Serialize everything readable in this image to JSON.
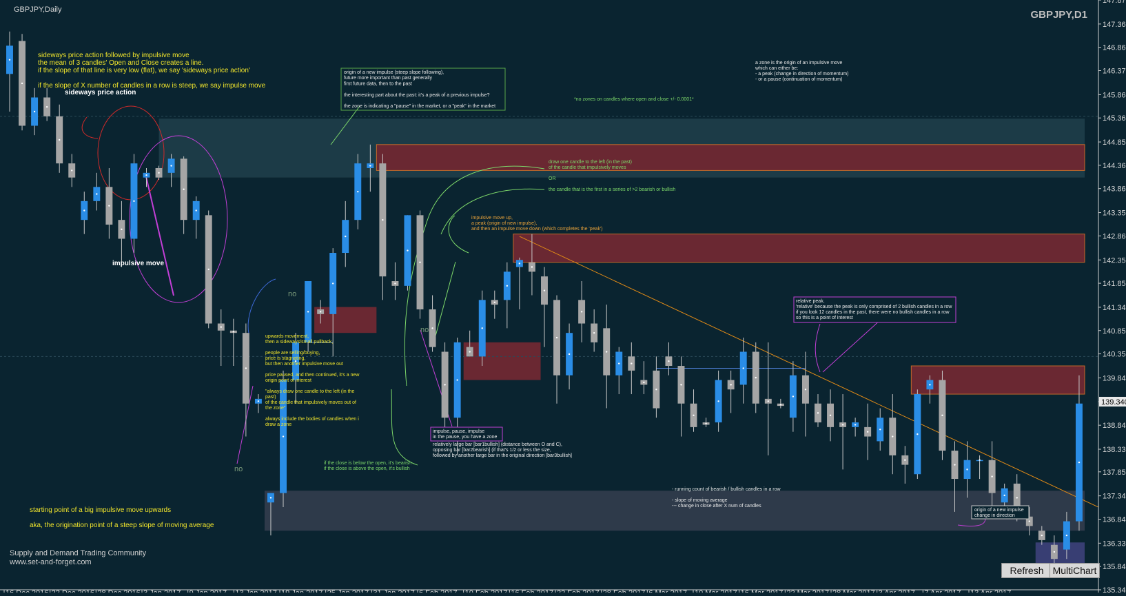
{
  "window": {
    "symbol_title": "GBPJPY,Daily",
    "watermark": "GBPJPY,D1",
    "current_price_badge": "139.340",
    "refresh_button": "Refresh",
    "multichart_button": "MultiChart"
  },
  "colors": {
    "background": "#0a2430",
    "bull_body": "#2a8de6",
    "bear_body": "#a5a5a5",
    "wick": "#c8c8c8",
    "supply_zone": "#6a2832",
    "demand_zone": "#2e3a4a",
    "trendline": "#e08a16",
    "annotation_yellow": "#f1e52c",
    "annotation_green": "#7dd86a",
    "annotation_orange": "#e8a23a",
    "annotation_white": "#e8e8e8",
    "magenta": "#c23fd6",
    "red_circle": "#d02a2a"
  },
  "chart_data": {
    "type": "candlestick",
    "symbol": "GBPJPY",
    "timeframe": "Daily",
    "ylim": [
      135.345,
      147.87
    ],
    "y_ticks": [
      "147.870",
      "147.360",
      "146.865",
      "146.370",
      "145.860",
      "145.365",
      "144.855",
      "144.360",
      "143.865",
      "143.355",
      "142.860",
      "142.350",
      "141.855",
      "141.345",
      "140.850",
      "140.355",
      "139.845",
      "139.340",
      "138.840",
      "138.330",
      "137.850",
      "137.340",
      "136.845",
      "136.335",
      "135.840",
      "135.345"
    ],
    "x_labels": [
      "16 Dec 2016",
      "22 Dec 2016",
      "28 Dec 2016",
      "3 Jan 2017",
      "9 Jan 2017",
      "13 Jan 2017",
      "19 Jan 2017",
      "25 Jan 2017",
      "31 Jan 2017",
      "6 Feb 2017",
      "10 Feb 2017",
      "16 Feb 2017",
      "22 Feb 2017",
      "28 Feb 2017",
      "6 Mar 2017",
      "10 Mar 2017",
      "16 Mar 2017",
      "22 Mar 2017",
      "28 Mar 2017",
      "3 Apr 2017",
      "7 Apr 2017",
      "13 Apr 2017"
    ],
    "candles": [
      {
        "o": 146.3,
        "h": 147.2,
        "l": 145.5,
        "c": 146.9
      },
      {
        "o": 147.0,
        "h": 147.15,
        "l": 145.1,
        "c": 145.2
      },
      {
        "o": 145.2,
        "h": 146.0,
        "l": 145.0,
        "c": 145.8
      },
      {
        "o": 145.8,
        "h": 146.0,
        "l": 145.3,
        "c": 145.4
      },
      {
        "o": 145.4,
        "h": 145.65,
        "l": 144.2,
        "c": 144.4
      },
      {
        "o": 144.4,
        "h": 144.6,
        "l": 143.9,
        "c": 144.1
      },
      {
        "o": 143.2,
        "h": 143.8,
        "l": 142.9,
        "c": 143.6
      },
      {
        "o": 143.6,
        "h": 144.2,
        "l": 143.4,
        "c": 143.9
      },
      {
        "o": 143.9,
        "h": 144.3,
        "l": 142.8,
        "c": 143.1
      },
      {
        "o": 143.2,
        "h": 143.6,
        "l": 142.2,
        "c": 142.8
      },
      {
        "o": 142.8,
        "h": 144.6,
        "l": 142.5,
        "c": 144.4
      },
      {
        "o": 144.1,
        "h": 144.3,
        "l": 143.9,
        "c": 144.2
      },
      {
        "o": 144.3,
        "h": 144.35,
        "l": 144.05,
        "c": 144.1
      },
      {
        "o": 144.2,
        "h": 144.6,
        "l": 143.9,
        "c": 144.5
      },
      {
        "o": 144.5,
        "h": 144.55,
        "l": 142.9,
        "c": 143.2
      },
      {
        "o": 143.2,
        "h": 143.7,
        "l": 142.8,
        "c": 143.6
      },
      {
        "o": 143.3,
        "h": 143.4,
        "l": 140.9,
        "c": 141.0
      },
      {
        "o": 141.0,
        "h": 141.3,
        "l": 140.1,
        "c": 140.85
      },
      {
        "o": 140.85,
        "h": 141.1,
        "l": 140.1,
        "c": 140.8
      },
      {
        "o": 140.8,
        "h": 141.0,
        "l": 138.6,
        "c": 139.3
      },
      {
        "o": 139.3,
        "h": 139.5,
        "l": 139.1,
        "c": 139.4
      },
      {
        "o": 137.2,
        "h": 137.3,
        "l": 136.5,
        "c": 137.4
      },
      {
        "o": 137.4,
        "h": 140.0,
        "l": 137.1,
        "c": 139.8
      },
      {
        "o": 139.8,
        "h": 140.8,
        "l": 139.3,
        "c": 140.6
      },
      {
        "o": 140.6,
        "h": 141.9,
        "l": 140.4,
        "c": 141.9
      },
      {
        "o": 141.3,
        "h": 141.5,
        "l": 141.0,
        "c": 141.2
      },
      {
        "o": 141.2,
        "h": 142.6,
        "l": 140.3,
        "c": 142.5
      },
      {
        "o": 142.5,
        "h": 143.6,
        "l": 142.2,
        "c": 143.2
      },
      {
        "o": 143.2,
        "h": 144.6,
        "l": 143.0,
        "c": 144.4
      },
      {
        "o": 144.3,
        "h": 144.8,
        "l": 143.8,
        "c": 144.4
      },
      {
        "o": 144.4,
        "h": 144.6,
        "l": 141.5,
        "c": 142.0
      },
      {
        "o": 141.9,
        "h": 142.3,
        "l": 141.5,
        "c": 141.8
      },
      {
        "o": 141.8,
        "h": 143.3,
        "l": 141.7,
        "c": 143.3
      },
      {
        "o": 143.3,
        "h": 143.4,
        "l": 141.1,
        "c": 141.3
      },
      {
        "o": 141.3,
        "h": 141.6,
        "l": 140.4,
        "c": 140.5
      },
      {
        "o": 140.4,
        "h": 140.6,
        "l": 138.5,
        "c": 139.0
      },
      {
        "o": 139.0,
        "h": 140.7,
        "l": 138.2,
        "c": 140.6
      },
      {
        "o": 140.5,
        "h": 140.85,
        "l": 140.3,
        "c": 140.3
      },
      {
        "o": 140.3,
        "h": 141.7,
        "l": 140.1,
        "c": 141.5
      },
      {
        "o": 141.5,
        "h": 141.7,
        "l": 141.1,
        "c": 141.4
      },
      {
        "o": 141.5,
        "h": 142.3,
        "l": 140.9,
        "c": 142.1
      },
      {
        "o": 142.2,
        "h": 142.4,
        "l": 141.3,
        "c": 142.35
      },
      {
        "o": 142.3,
        "h": 142.9,
        "l": 141.6,
        "c": 142.1
      },
      {
        "o": 142.0,
        "h": 142.2,
        "l": 140.5,
        "c": 141.4
      },
      {
        "o": 141.5,
        "h": 141.6,
        "l": 139.3,
        "c": 139.9
      },
      {
        "o": 139.9,
        "h": 141.0,
        "l": 139.6,
        "c": 140.8
      },
      {
        "o": 141.5,
        "h": 141.9,
        "l": 140.6,
        "c": 141.0
      },
      {
        "o": 141.0,
        "h": 141.3,
        "l": 140.4,
        "c": 140.6
      },
      {
        "o": 140.9,
        "h": 141.4,
        "l": 139.2,
        "c": 139.9
      },
      {
        "o": 139.9,
        "h": 140.5,
        "l": 139.5,
        "c": 140.4
      },
      {
        "o": 140.3,
        "h": 140.6,
        "l": 139.5,
        "c": 140.0
      },
      {
        "o": 139.8,
        "h": 140.2,
        "l": 139.5,
        "c": 139.7
      },
      {
        "o": 140.0,
        "h": 140.3,
        "l": 139.0,
        "c": 139.2
      },
      {
        "o": 140.3,
        "h": 140.6,
        "l": 139.9,
        "c": 140.1
      },
      {
        "o": 140.1,
        "h": 140.3,
        "l": 138.6,
        "c": 139.3
      },
      {
        "o": 139.3,
        "h": 139.6,
        "l": 138.7,
        "c": 138.8
      },
      {
        "o": 138.9,
        "h": 139.0,
        "l": 138.8,
        "c": 138.85
      },
      {
        "o": 138.9,
        "h": 140.0,
        "l": 138.7,
        "c": 139.8
      },
      {
        "o": 139.8,
        "h": 140.0,
        "l": 139.1,
        "c": 139.6
      },
      {
        "o": 139.7,
        "h": 140.7,
        "l": 139.3,
        "c": 140.4
      },
      {
        "o": 140.4,
        "h": 140.6,
        "l": 139.1,
        "c": 139.3
      },
      {
        "o": 139.4,
        "h": 140.6,
        "l": 138.2,
        "c": 139.3
      },
      {
        "o": 139.3,
        "h": 139.4,
        "l": 139.2,
        "c": 139.25
      },
      {
        "o": 139.0,
        "h": 140.2,
        "l": 138.7,
        "c": 139.9
      },
      {
        "o": 139.9,
        "h": 140.4,
        "l": 138.6,
        "c": 139.3
      },
      {
        "o": 139.3,
        "h": 139.5,
        "l": 138.8,
        "c": 138.9
      },
      {
        "o": 139.3,
        "h": 139.6,
        "l": 138.5,
        "c": 138.8
      },
      {
        "o": 138.9,
        "h": 139.5,
        "l": 137.9,
        "c": 138.8
      },
      {
        "o": 138.8,
        "h": 139.0,
        "l": 138.6,
        "c": 138.9
      },
      {
        "o": 138.8,
        "h": 139.3,
        "l": 138.1,
        "c": 138.6
      },
      {
        "o": 138.5,
        "h": 139.2,
        "l": 138.3,
        "c": 139.0
      },
      {
        "o": 139.0,
        "h": 139.5,
        "l": 137.8,
        "c": 138.2
      },
      {
        "o": 138.2,
        "h": 138.4,
        "l": 137.6,
        "c": 138.0
      },
      {
        "o": 137.8,
        "h": 139.6,
        "l": 137.7,
        "c": 139.5
      },
      {
        "o": 139.6,
        "h": 139.9,
        "l": 139.3,
        "c": 139.8
      },
      {
        "o": 139.8,
        "h": 140.0,
        "l": 138.1,
        "c": 138.3
      },
      {
        "o": 138.3,
        "h": 138.5,
        "l": 137.0,
        "c": 137.7
      },
      {
        "o": 137.7,
        "h": 138.5,
        "l": 137.3,
        "c": 138.1
      },
      {
        "o": 138.1,
        "h": 138.2,
        "l": 137.7,
        "c": 138.1
      },
      {
        "o": 138.1,
        "h": 138.5,
        "l": 137.0,
        "c": 137.4
      },
      {
        "o": 137.2,
        "h": 137.6,
        "l": 136.9,
        "c": 137.5
      },
      {
        "o": 137.6,
        "h": 137.8,
        "l": 136.8,
        "c": 137.0
      },
      {
        "o": 136.9,
        "h": 137.1,
        "l": 136.5,
        "c": 136.7
      },
      {
        "o": 136.6,
        "h": 136.7,
        "l": 136.3,
        "c": 136.4
      },
      {
        "o": 136.3,
        "h": 136.5,
        "l": 135.6,
        "c": 136.0
      },
      {
        "o": 136.2,
        "h": 137.0,
        "l": 136.0,
        "c": 136.8
      },
      {
        "o": 136.8,
        "h": 139.9,
        "l": 136.6,
        "c": 139.3
      }
    ],
    "zones": [
      {
        "kind": "supply",
        "from_bar": 30,
        "to_price_top": 144.8,
        "to_price_bottom": 144.25
      },
      {
        "kind": "supply",
        "from_bar": 41,
        "to_price_top": 142.9,
        "to_price_bottom": 142.3
      },
      {
        "kind": "supply",
        "from_bar": 25,
        "to_price_top": 141.35,
        "to_price_bottom": 140.8
      },
      {
        "kind": "supply",
        "from_bar": 37,
        "to_price_top": 140.6,
        "to_price_bottom": 139.8
      },
      {
        "kind": "supply",
        "from_bar": 73,
        "to_price_top": 140.1,
        "to_price_bottom": 139.5
      },
      {
        "kind": "demand",
        "from_bar": 21,
        "to_price_top": 137.45,
        "to_price_bottom": 136.6
      },
      {
        "kind": "demand",
        "from_bar": 83,
        "to_price_top": 136.35,
        "to_price_bottom": 135.6
      }
    ]
  },
  "annotations": {
    "sideways_block": [
      "sideways price action followed by impulsive move",
      "the mean of 3 candles' Open and Close creates a line.",
      "if the slope of that line is very low (flat), we say 'sideways price action'",
      "",
      "if the slope of X number of candles in a row is steep, we say impulse move"
    ],
    "sideways_label": "sideways price action",
    "impulsive_label": "impulsive move",
    "origin_box": [
      "origin of a new impulse (steep slope following),",
      "future more important than past generally",
      "first future data, then to the past",
      "",
      "the interesting part about the past: it's a peak of a previous impulse?",
      "",
      "the zone is indicating a \"pause\" in the market, or a \"peak\" in the market"
    ],
    "no_zones_note": "*no zones on candles where open and close +/- 0.0001*",
    "zone_definition": [
      "a zone is the origin of an impulsive move",
      "which can either be:",
      "- a peak (change in direction of momentum)",
      "- or a pause (continuation of momentum)"
    ],
    "draw_one_candle": [
      "draw one candle to the left (in the past)",
      "of the candle that impulsively moves"
    ],
    "or_label": "OR",
    "first_in_series": "the candle that is the first in a series of >2 bearish or bullish",
    "impulsive_up_peak": [
      "impulsive move up,",
      "a peak (origin of new impulse),",
      "and then an impulse move down (which completes the 'peak')"
    ],
    "upwards_movement": [
      "upwards movement,",
      "then a sideways/small pullback,",
      "",
      "people are selling/buying,",
      "price is stagnating,",
      "but then another impulsive move out",
      "",
      "price paused, and then continued, it's a new",
      "origin point of interest",
      "",
      "\"always draw one candle to the left (in the",
      "past)",
      "of the candle that impulsively moves out of",
      "the zone\"",
      "",
      "always include the bodies of candles when i",
      "draw a zone"
    ],
    "close_note": [
      "if the close is below the open, it's bearish",
      "if the close is above the open, it's bullish"
    ],
    "impulse_pause_box": [
      "impulse, pause, impulse",
      "in the pause, you have a zone"
    ],
    "large_bar_note": [
      "relatively large bar [bar1bullish] (distance between O and C),",
      "opposing bar [bar2bearish] (if  that's 1/2 or less the size,",
      "followed by another large bar in the original direction [bar3bullish]"
    ],
    "relative_peak_box": [
      "relative peak.",
      "'relative' because the peak is only comprised of 2 bullish candles in a row",
      "if you look 12 candles in the past, there were no bullish candles in a row",
      "so this is a point of interest"
    ],
    "running_count": [
      "- running count of bearish / bullish candles in a row",
      "",
      "- slope of moving average",
      "--- change in close after X num of candles"
    ],
    "new_impulse_box": [
      "origin of a new impulse",
      "change in direction"
    ],
    "starting_point": [
      "starting point of a big impulsive move upwards",
      "",
      "aka, the origination point of a steep slope of moving average"
    ],
    "community": [
      "Supply and Demand Trading Community",
      "www.set-and-forget.com"
    ],
    "no_marker": "no"
  }
}
